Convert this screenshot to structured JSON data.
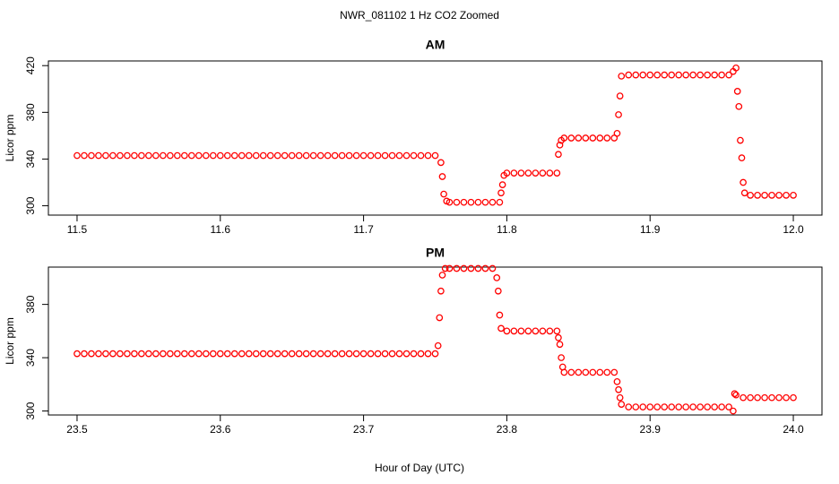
{
  "title": "NWR_081102  1 Hz CO2 Zoomed",
  "xlabel": "Hour of Day (UTC)",
  "chart_data": [
    {
      "type": "scatter",
      "title": "AM",
      "ylabel": "Licor ppm",
      "color": "#ff0000",
      "xlim": [
        11.48,
        12.02
      ],
      "ylim": [
        292,
        424
      ],
      "xticks": [
        11.5,
        11.6,
        11.7,
        11.8,
        11.9,
        {
          "value": 12,
          "label": "12.0"
        }
      ],
      "yticks": [
        300,
        340,
        380,
        420
      ],
      "x": [
        11.5,
        11.505,
        11.51,
        11.515,
        11.52,
        11.525,
        11.53,
        11.535,
        11.54,
        11.545,
        11.55,
        11.555,
        11.56,
        11.565,
        11.57,
        11.575,
        11.58,
        11.585,
        11.59,
        11.595,
        11.6,
        11.605,
        11.61,
        11.615,
        11.62,
        11.625,
        11.63,
        11.635,
        11.64,
        11.645,
        11.65,
        11.655,
        11.66,
        11.665,
        11.67,
        11.675,
        11.68,
        11.685,
        11.69,
        11.695,
        11.7,
        11.705,
        11.71,
        11.715,
        11.72,
        11.725,
        11.73,
        11.735,
        11.74,
        11.745,
        11.75,
        11.754,
        11.755,
        11.756,
        11.758,
        11.76,
        11.765,
        11.77,
        11.775,
        11.78,
        11.785,
        11.79,
        11.795,
        11.796,
        11.797,
        11.798,
        11.8,
        11.805,
        11.81,
        11.815,
        11.82,
        11.825,
        11.83,
        11.835,
        11.836,
        11.837,
        11.838,
        11.84,
        11.845,
        11.85,
        11.855,
        11.86,
        11.865,
        11.87,
        11.875,
        11.877,
        11.878,
        11.879,
        11.88,
        11.885,
        11.89,
        11.895,
        11.9,
        11.905,
        11.91,
        11.915,
        11.92,
        11.925,
        11.93,
        11.935,
        11.94,
        11.945,
        11.95,
        11.955,
        11.958,
        11.96,
        11.961,
        11.962,
        11.963,
        11.964,
        11.965,
        11.966,
        11.97,
        11.975,
        11.98,
        11.985,
        11.99,
        11.995,
        12
      ],
      "values": [
        343,
        343,
        343,
        343,
        343,
        343,
        343,
        343,
        343,
        343,
        343,
        343,
        343,
        343,
        343,
        343,
        343,
        343,
        343,
        343,
        343,
        343,
        343,
        343,
        343,
        343,
        343,
        343,
        343,
        343,
        343,
        343,
        343,
        343,
        343,
        343,
        343,
        343,
        343,
        343,
        343,
        343,
        343,
        343,
        343,
        343,
        343,
        343,
        343,
        343,
        343,
        337,
        325,
        310,
        304,
        303,
        303,
        303,
        303,
        303,
        303,
        303,
        303,
        311,
        318,
        326,
        328,
        328,
        328,
        328,
        328,
        328,
        328,
        328,
        344,
        352,
        356,
        358,
        358,
        358,
        358,
        358,
        358,
        358,
        358,
        362,
        378,
        394,
        411,
        412,
        412,
        412,
        412,
        412,
        412,
        412,
        412,
        412,
        412,
        412,
        412,
        412,
        412,
        412,
        415,
        418,
        398,
        385,
        356,
        341,
        320,
        311,
        309,
        309,
        309,
        309,
        309,
        309,
        309
      ]
    },
    {
      "type": "scatter",
      "title": "PM",
      "ylabel": "Licor ppm",
      "color": "#ff0000",
      "xlim": [
        23.48,
        24.02
      ],
      "ylim": [
        297,
        408
      ],
      "xticks": [
        23.5,
        23.6,
        23.7,
        23.8,
        23.9,
        {
          "value": 24,
          "label": "24.0"
        }
      ],
      "yticks": [
        300,
        340,
        380
      ],
      "x": [
        23.5,
        23.505,
        23.51,
        23.515,
        23.52,
        23.525,
        23.53,
        23.535,
        23.54,
        23.545,
        23.55,
        23.555,
        23.56,
        23.565,
        23.57,
        23.575,
        23.58,
        23.585,
        23.59,
        23.595,
        23.6,
        23.605,
        23.61,
        23.615,
        23.62,
        23.625,
        23.63,
        23.635,
        23.64,
        23.645,
        23.65,
        23.655,
        23.66,
        23.665,
        23.67,
        23.675,
        23.68,
        23.685,
        23.69,
        23.695,
        23.7,
        23.705,
        23.71,
        23.715,
        23.72,
        23.725,
        23.73,
        23.735,
        23.74,
        23.745,
        23.75,
        23.752,
        23.753,
        23.754,
        23.755,
        23.757,
        23.76,
        23.765,
        23.77,
        23.775,
        23.78,
        23.785,
        23.79,
        23.793,
        23.794,
        23.795,
        23.796,
        23.8,
        23.805,
        23.81,
        23.815,
        23.82,
        23.825,
        23.83,
        23.835,
        23.836,
        23.837,
        23.838,
        23.839,
        23.84,
        23.845,
        23.85,
        23.855,
        23.86,
        23.865,
        23.87,
        23.875,
        23.877,
        23.878,
        23.879,
        23.88,
        23.885,
        23.89,
        23.895,
        23.9,
        23.905,
        23.91,
        23.915,
        23.92,
        23.925,
        23.93,
        23.935,
        23.94,
        23.945,
        23.95,
        23.955,
        23.958,
        23.959,
        23.96,
        23.965,
        23.97,
        23.975,
        23.98,
        23.985,
        23.99,
        23.995,
        24
      ],
      "values": [
        343,
        343,
        343,
        343,
        343,
        343,
        343,
        343,
        343,
        343,
        343,
        343,
        343,
        343,
        343,
        343,
        343,
        343,
        343,
        343,
        343,
        343,
        343,
        343,
        343,
        343,
        343,
        343,
        343,
        343,
        343,
        343,
        343,
        343,
        343,
        343,
        343,
        343,
        343,
        343,
        343,
        343,
        343,
        343,
        343,
        343,
        343,
        343,
        343,
        343,
        343,
        349,
        370,
        390,
        402,
        407,
        407,
        407,
        407,
        407,
        407,
        407,
        407,
        400,
        390,
        372,
        362,
        360,
        360,
        360,
        360,
        360,
        360,
        360,
        360,
        355,
        350,
        340,
        333,
        329,
        329,
        329,
        329,
        329,
        329,
        329,
        329,
        322,
        316,
        310,
        305,
        303,
        303,
        303,
        303,
        303,
        303,
        303,
        303,
        303,
        303,
        303,
        303,
        303,
        303,
        303,
        300,
        313,
        312,
        310,
        310,
        310,
        310,
        310,
        310,
        310,
        310
      ]
    }
  ]
}
